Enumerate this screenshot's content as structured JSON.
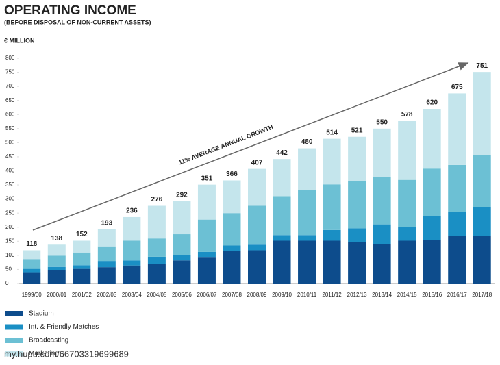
{
  "chart_data": {
    "type": "stacked_bar",
    "title": "OPERATING INCOME",
    "subtitle": "(BEFORE DISPOSAL OF NON-CURRENT ASSETS)",
    "y_label": "€ MILLION",
    "annotation": "11% AVERAGE ANNUAL GROWTH",
    "watermark": "my.hupu.com/66703319699689",
    "categories": [
      "1999/00",
      "2000/01",
      "2001/02",
      "2002/03",
      "2003/04",
      "2004/05",
      "2005/06",
      "2006/07",
      "2007/08",
      "2008/09",
      "2009/10",
      "2010/11",
      "2011/12",
      "2012/13",
      "2013/14",
      "2014/15",
      "2015/16",
      "2016/17",
      "2017/18"
    ],
    "series": [
      {
        "name": "Stadium",
        "color": "#0d4c8c",
        "values": [
          40,
          47,
          52,
          58,
          64,
          70,
          82,
          92,
          115,
          118,
          152,
          152,
          152,
          148,
          140,
          152,
          155,
          168,
          170
        ]
      },
      {
        "name": "Int. & Friendly Matches",
        "color": "#1a8fc4",
        "values": [
          12,
          12,
          13,
          22,
          18,
          25,
          18,
          20,
          20,
          20,
          20,
          20,
          38,
          48,
          70,
          48,
          85,
          85,
          100
        ]
      },
      {
        "name": "Broadcasting",
        "color": "#6cc0d4",
        "values": [
          35,
          40,
          45,
          52,
          70,
          65,
          75,
          115,
          115,
          138,
          138,
          160,
          162,
          168,
          168,
          168,
          168,
          168,
          185
        ]
      },
      {
        "name": "Marketing",
        "color": "#c4e5ec",
        "values": [
          31,
          39,
          42,
          61,
          84,
          116,
          117,
          124,
          116,
          131,
          132,
          148,
          162,
          157,
          172,
          210,
          212,
          254,
          296
        ]
      }
    ],
    "totals": [
      118,
      138,
      152,
      193,
      236,
      276,
      292,
      351,
      366,
      407,
      442,
      480,
      514,
      521,
      550,
      578,
      620,
      675,
      751
    ],
    "ylim": [
      0,
      800
    ],
    "yticks": [
      0,
      50,
      100,
      150,
      200,
      250,
      300,
      350,
      400,
      450,
      500,
      550,
      600,
      650,
      700,
      750,
      800
    ]
  }
}
